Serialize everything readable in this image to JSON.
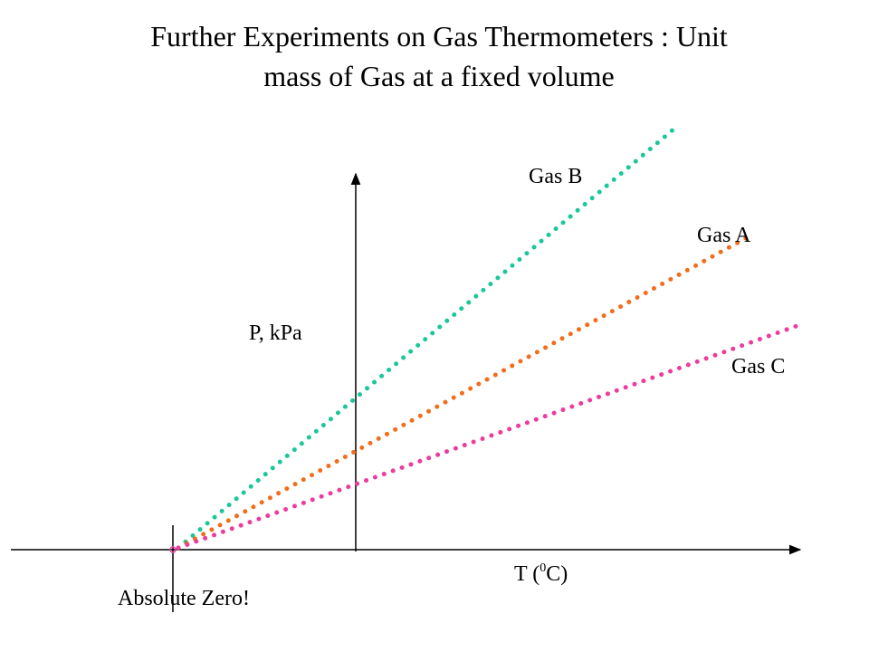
{
  "title": {
    "line1": "Further Experiments on Gas Thermometers : Unit",
    "line2": "mass of Gas at a fixed volume"
  },
  "axes": {
    "y_label": "P, kPa",
    "x_label_prefix": "T (",
    "x_label_sup": "0",
    "x_label_suffix": "C)"
  },
  "annotation": "Absolute Zero!",
  "lines": [
    {
      "name": "Gas B",
      "color": "#19c79a",
      "style": "dotted"
    },
    {
      "name": "Gas A",
      "color": "#f26d1b",
      "style": "dotted"
    },
    {
      "name": "Gas C",
      "color": "#ee3a9c",
      "style": "dotted"
    }
  ],
  "colors": {
    "axis": "#000000",
    "origin_marker": "#ee3a9c"
  }
}
